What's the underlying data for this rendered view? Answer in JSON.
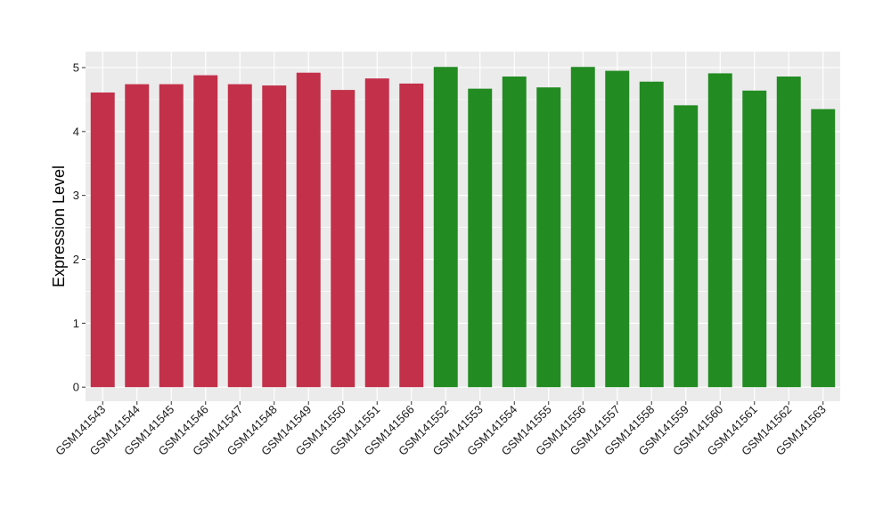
{
  "chart_data": {
    "type": "bar",
    "ylabel": "Expression Level",
    "xlabel": "",
    "ylim": [
      -0.22,
      5.25
    ],
    "yticks": [
      0,
      1,
      2,
      3,
      4,
      5
    ],
    "grid": true,
    "background": "#ebebeb",
    "categories": [
      "GSM141543",
      "GSM141544",
      "GSM141545",
      "GSM141546",
      "GSM141547",
      "GSM141548",
      "GSM141549",
      "GSM141550",
      "GSM141551",
      "GSM141566",
      "GSM141552",
      "GSM141553",
      "GSM141554",
      "GSM141555",
      "GSM141556",
      "GSM141557",
      "GSM141558",
      "GSM141559",
      "GSM141560",
      "GSM141561",
      "GSM141562",
      "GSM141563"
    ],
    "values": [
      4.61,
      4.74,
      4.74,
      4.88,
      4.74,
      4.72,
      4.92,
      4.65,
      4.83,
      4.75,
      5.01,
      4.67,
      4.86,
      4.69,
      5.01,
      4.95,
      4.78,
      4.41,
      4.91,
      4.64,
      4.86,
      4.35
    ],
    "groups": [
      "red",
      "red",
      "red",
      "red",
      "red",
      "red",
      "red",
      "red",
      "red",
      "red",
      "green",
      "green",
      "green",
      "green",
      "green",
      "green",
      "green",
      "green",
      "green",
      "green",
      "green",
      "green"
    ],
    "colors": {
      "red": "#c3304a",
      "green": "#228b22"
    }
  }
}
